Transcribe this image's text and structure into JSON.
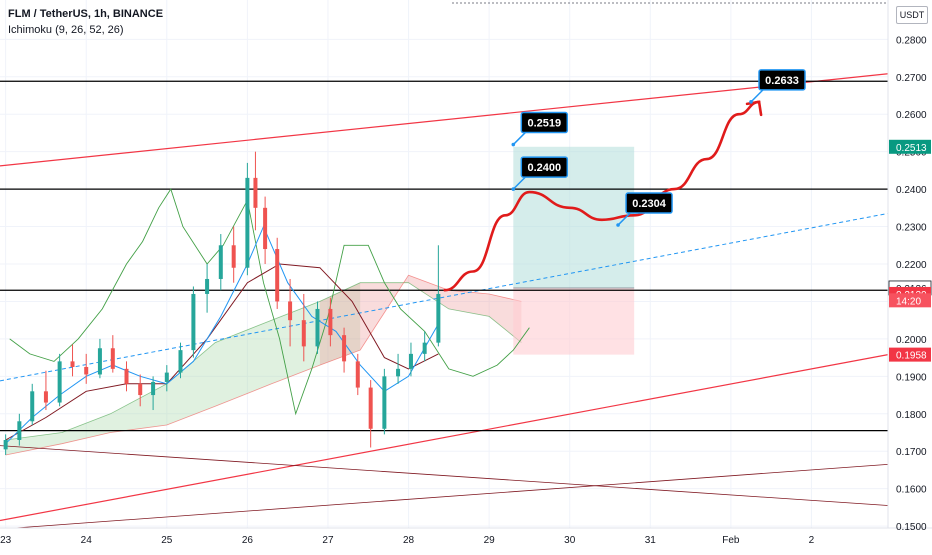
{
  "header": {
    "title": "FLM / TetherUS, 1h, BINANCE",
    "indicator": "Ichimoku",
    "indicator_params": "(9, 26, 52, 26)"
  },
  "currency": "USDT",
  "colors": {
    "up": "#26a69a",
    "down": "#ef5350",
    "channel": "#f23645",
    "tenkan": "#2196f3",
    "kijun": "#801922",
    "chikou": "#43a047",
    "cloud_bull": "#a5d6a7",
    "cloud_bear": "#ef9a9a",
    "target_zone": "#b2dfdb",
    "stop_zone": "#ffcdd2",
    "level": "#000000",
    "marker_bg": "#000000",
    "marker_border": "#2196f3"
  },
  "chart_data": {
    "type": "candlestick",
    "symbol": "FLM / TetherUS",
    "interval": "1h",
    "exchange": "BINANCE",
    "y_axis": {
      "ylim": [
        0.1495,
        0.2905
      ],
      "ticks": [
        "0.2800",
        "0.2700",
        "0.2600",
        "0.2500",
        "0.2400",
        "0.2300",
        "0.2200",
        "0.2100",
        "0.2000",
        "0.1900",
        "0.1800",
        "0.1700",
        "0.1600",
        "0.1500"
      ]
    },
    "x_axis": {
      "labels": [
        "23",
        "24",
        "25",
        "26",
        "27",
        "28",
        "29",
        "30",
        "31",
        "Feb",
        "2"
      ],
      "label_positions_days": [
        0,
        1,
        2,
        3,
        4,
        5,
        6,
        7,
        8,
        9,
        10
      ],
      "xlim_days": [
        -0.07,
        10.95
      ]
    },
    "price_labels": [
      {
        "label": "0.2513",
        "value": 0.2513,
        "style": "green"
      },
      {
        "label": "0.2136",
        "value": 0.2136,
        "style": "outline"
      },
      {
        "label": "0.2120",
        "value": 0.212,
        "style": "red"
      },
      {
        "label": "14:20",
        "value": 0.2103,
        "style": "red-light"
      },
      {
        "label": "0.1958",
        "value": 0.1958,
        "style": "red"
      }
    ],
    "horizontal_levels": [
      0.2688,
      0.24,
      0.213,
      0.1755
    ],
    "channel": {
      "upper": [
        [
          -0.07,
          0.2462
        ],
        [
          10.95,
          0.2708
        ]
      ],
      "lower": [
        [
          -0.07,
          0.1515
        ],
        [
          10.95,
          0.1958
        ]
      ],
      "mid_dashed": [
        [
          -0.07,
          0.1888
        ],
        [
          10.95,
          0.2335
        ]
      ]
    },
    "trend_lines": {
      "descending": [
        [
          -0.07,
          0.1715
        ],
        [
          10.95,
          0.1555
        ]
      ],
      "ascending": [
        [
          -0.07,
          0.1492
        ],
        [
          10.95,
          0.1665
        ]
      ]
    },
    "projection_path": [
      [
        5.45,
        0.213
      ],
      [
        5.8,
        0.218
      ],
      [
        6.2,
        0.233
      ],
      [
        6.5,
        0.2392
      ],
      [
        7.0,
        0.235
      ],
      [
        7.4,
        0.2318
      ],
      [
        7.8,
        0.233
      ],
      [
        8.3,
        0.24
      ],
      [
        8.7,
        0.248
      ],
      [
        9.1,
        0.26
      ],
      [
        9.35,
        0.2633
      ]
    ],
    "markers": [
      {
        "label": "0.2519",
        "value": 0.2519,
        "x_day": 6.3
      },
      {
        "label": "0.2400",
        "value": 0.24,
        "x_day": 6.3
      },
      {
        "label": "0.2304",
        "value": 0.2304,
        "x_day": 7.6
      },
      {
        "label": "0.2633",
        "value": 0.2633,
        "x_day": 9.25
      }
    ],
    "position": {
      "x_range_days": [
        6.3,
        7.8
      ],
      "entry": 0.2136,
      "target": 0.2513,
      "stop": 0.1958
    },
    "candles": [
      {
        "x": 0.0,
        "o": 0.1705,
        "h": 0.1745,
        "l": 0.169,
        "c": 0.173
      },
      {
        "x": 0.17,
        "o": 0.173,
        "h": 0.18,
        "l": 0.1715,
        "c": 0.178
      },
      {
        "x": 0.33,
        "o": 0.178,
        "h": 0.188,
        "l": 0.177,
        "c": 0.186
      },
      {
        "x": 0.5,
        "o": 0.186,
        "h": 0.1915,
        "l": 0.181,
        "c": 0.183
      },
      {
        "x": 0.67,
        "o": 0.183,
        "h": 0.196,
        "l": 0.182,
        "c": 0.194
      },
      {
        "x": 0.83,
        "o": 0.194,
        "h": 0.1985,
        "l": 0.19,
        "c": 0.1925
      },
      {
        "x": 1.0,
        "o": 0.1925,
        "h": 0.196,
        "l": 0.188,
        "c": 0.1905
      },
      {
        "x": 1.17,
        "o": 0.1905,
        "h": 0.2,
        "l": 0.1895,
        "c": 0.1975
      },
      {
        "x": 1.33,
        "o": 0.1975,
        "h": 0.201,
        "l": 0.191,
        "c": 0.192
      },
      {
        "x": 1.5,
        "o": 0.192,
        "h": 0.194,
        "l": 0.186,
        "c": 0.188
      },
      {
        "x": 1.67,
        "o": 0.188,
        "h": 0.1905,
        "l": 0.182,
        "c": 0.185
      },
      {
        "x": 1.83,
        "o": 0.185,
        "h": 0.19,
        "l": 0.181,
        "c": 0.1885
      },
      {
        "x": 2.0,
        "o": 0.1885,
        "h": 0.193,
        "l": 0.186,
        "c": 0.191
      },
      {
        "x": 2.17,
        "o": 0.191,
        "h": 0.199,
        "l": 0.1895,
        "c": 0.197
      },
      {
        "x": 2.33,
        "o": 0.197,
        "h": 0.214,
        "l": 0.195,
        "c": 0.212
      },
      {
        "x": 2.5,
        "o": 0.212,
        "h": 0.22,
        "l": 0.207,
        "c": 0.216
      },
      {
        "x": 2.67,
        "o": 0.216,
        "h": 0.228,
        "l": 0.213,
        "c": 0.225
      },
      {
        "x": 2.83,
        "o": 0.225,
        "h": 0.23,
        "l": 0.215,
        "c": 0.219
      },
      {
        "x": 3.0,
        "o": 0.219,
        "h": 0.247,
        "l": 0.217,
        "c": 0.243
      },
      {
        "x": 3.1,
        "o": 0.243,
        "h": 0.25,
        "l": 0.229,
        "c": 0.235
      },
      {
        "x": 3.22,
        "o": 0.235,
        "h": 0.238,
        "l": 0.22,
        "c": 0.224
      },
      {
        "x": 3.37,
        "o": 0.224,
        "h": 0.227,
        "l": 0.208,
        "c": 0.21
      },
      {
        "x": 3.53,
        "o": 0.21,
        "h": 0.216,
        "l": 0.198,
        "c": 0.205
      },
      {
        "x": 3.7,
        "o": 0.205,
        "h": 0.212,
        "l": 0.194,
        "c": 0.198
      },
      {
        "x": 3.87,
        "o": 0.198,
        "h": 0.21,
        "l": 0.196,
        "c": 0.208
      },
      {
        "x": 4.03,
        "o": 0.208,
        "h": 0.211,
        "l": 0.198,
        "c": 0.201
      },
      {
        "x": 4.2,
        "o": 0.201,
        "h": 0.203,
        "l": 0.191,
        "c": 0.194
      },
      {
        "x": 4.37,
        "o": 0.194,
        "h": 0.196,
        "l": 0.185,
        "c": 0.187
      },
      {
        "x": 4.53,
        "o": 0.187,
        "h": 0.189,
        "l": 0.171,
        "c": 0.176
      },
      {
        "x": 4.7,
        "o": 0.176,
        "h": 0.192,
        "l": 0.1745,
        "c": 0.19
      },
      {
        "x": 4.87,
        "o": 0.19,
        "h": 0.196,
        "l": 0.188,
        "c": 0.192
      },
      {
        "x": 5.03,
        "o": 0.192,
        "h": 0.199,
        "l": 0.19,
        "c": 0.196
      },
      {
        "x": 5.2,
        "o": 0.196,
        "h": 0.202,
        "l": 0.194,
        "c": 0.199
      },
      {
        "x": 5.37,
        "o": 0.199,
        "h": 0.225,
        "l": 0.198,
        "c": 0.212
      }
    ],
    "tenkan": [
      [
        0,
        0.172
      ],
      [
        0.33,
        0.179
      ],
      [
        0.67,
        0.185
      ],
      [
        1.0,
        0.19
      ],
      [
        1.33,
        0.193
      ],
      [
        1.67,
        0.19
      ],
      [
        2.0,
        0.188
      ],
      [
        2.33,
        0.194
      ],
      [
        2.67,
        0.206
      ],
      [
        3.0,
        0.22
      ],
      [
        3.2,
        0.23
      ],
      [
        3.5,
        0.215
      ],
      [
        3.8,
        0.206
      ],
      [
        4.1,
        0.202
      ],
      [
        4.4,
        0.193
      ],
      [
        4.7,
        0.186
      ],
      [
        5.0,
        0.19
      ],
      [
        5.37,
        0.204
      ]
    ],
    "kijun": [
      [
        0,
        0.173
      ],
      [
        0.5,
        0.179
      ],
      [
        1.0,
        0.186
      ],
      [
        1.5,
        0.188
      ],
      [
        2.0,
        0.188
      ],
      [
        2.5,
        0.2
      ],
      [
        3.0,
        0.215
      ],
      [
        3.4,
        0.22
      ],
      [
        3.9,
        0.219
      ],
      [
        4.3,
        0.21
      ],
      [
        4.7,
        0.195
      ],
      [
        5.0,
        0.192
      ],
      [
        5.37,
        0.196
      ]
    ],
    "chikou": [
      [
        0.05,
        0.2
      ],
      [
        0.3,
        0.196
      ],
      [
        0.6,
        0.194
      ],
      [
        0.9,
        0.2
      ],
      [
        1.2,
        0.208
      ],
      [
        1.5,
        0.22
      ],
      [
        1.7,
        0.226
      ],
      [
        1.9,
        0.235
      ],
      [
        2.05,
        0.24
      ],
      [
        2.2,
        0.23
      ],
      [
        2.5,
        0.22
      ],
      [
        2.7,
        0.225
      ],
      [
        3.0,
        0.237
      ],
      [
        3.2,
        0.215
      ],
      [
        3.4,
        0.2
      ],
      [
        3.6,
        0.18
      ],
      [
        3.8,
        0.192
      ],
      [
        4.0,
        0.206
      ],
      [
        4.2,
        0.225
      ],
      [
        4.5,
        0.225
      ],
      [
        4.7,
        0.215
      ],
      [
        4.9,
        0.208
      ],
      [
        5.2,
        0.202
      ],
      [
        5.5,
        0.192
      ],
      [
        5.8,
        0.19
      ],
      [
        6.1,
        0.193
      ],
      [
        6.3,
        0.197
      ],
      [
        6.5,
        0.203
      ]
    ],
    "cloud_span_a": [
      [
        0.0,
        0.173
      ],
      [
        0.7,
        0.175
      ],
      [
        1.3,
        0.18
      ],
      [
        2.0,
        0.188
      ],
      [
        2.6,
        0.199
      ],
      [
        3.3,
        0.205
      ],
      [
        3.9,
        0.21
      ],
      [
        4.4,
        0.215
      ],
      [
        5.0,
        0.215
      ],
      [
        5.5,
        0.208
      ],
      [
        6.0,
        0.206
      ],
      [
        6.4,
        0.199
      ]
    ],
    "cloud_span_b": [
      [
        0.0,
        0.169
      ],
      [
        0.7,
        0.172
      ],
      [
        1.3,
        0.175
      ],
      [
        2.0,
        0.177
      ],
      [
        2.6,
        0.182
      ],
      [
        3.3,
        0.188
      ],
      [
        3.9,
        0.193
      ],
      [
        4.4,
        0.197
      ],
      [
        5.0,
        0.217
      ],
      [
        5.5,
        0.213
      ],
      [
        6.0,
        0.212
      ],
      [
        6.4,
        0.21
      ]
    ]
  }
}
